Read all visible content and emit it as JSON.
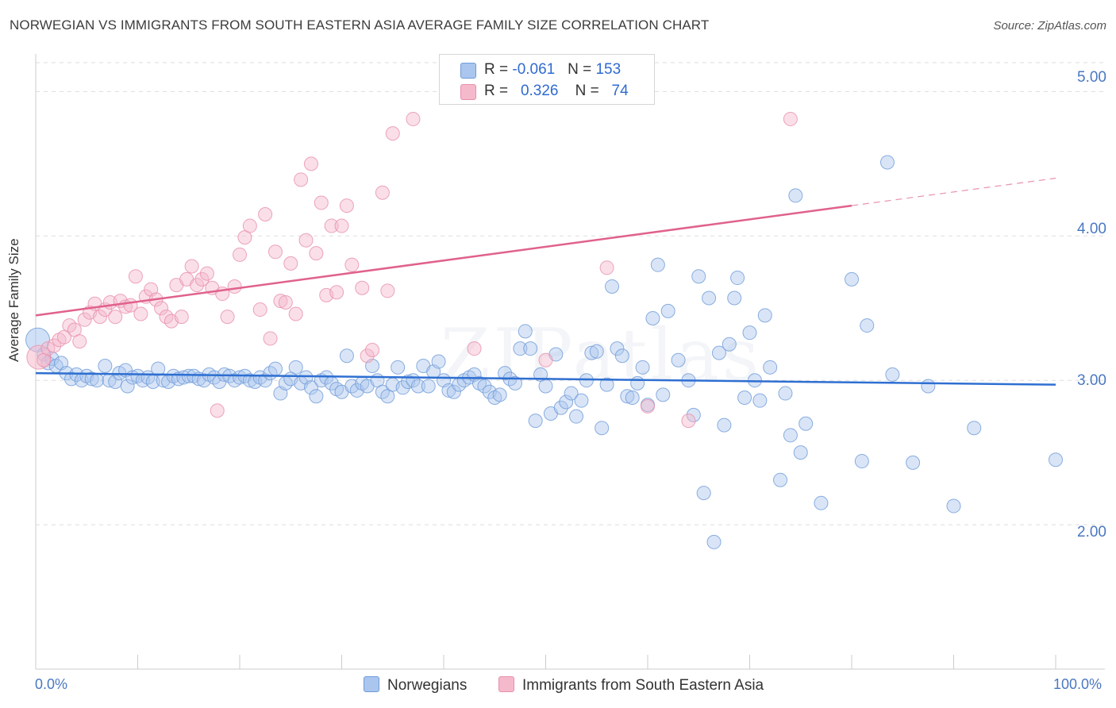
{
  "title": "NORWEGIAN VS IMMIGRANTS FROM SOUTH EASTERN ASIA AVERAGE FAMILY SIZE CORRELATION CHART",
  "source": "Source: ZipAtlas.com",
  "watermark": "ZIPatlas",
  "legend_top": {
    "rows": [
      {
        "r_label": "R = ",
        "r_value": "-0.061",
        "n_label": "N = ",
        "n_value": "153"
      },
      {
        "r_label": "R = ",
        "r_value": "0.326",
        "n_label": "N = ",
        "n_value": "74"
      }
    ]
  },
  "colors": {
    "blue_fill": "#aac6ee",
    "blue_stroke": "#6f9bd8",
    "blue_line": "#2e6fd1",
    "pink_fill": "#f5b9cc",
    "pink_stroke": "#e98fab",
    "pink_line": "#e0628b",
    "grid": "#dddddd",
    "tick_text": "#4a78c2"
  },
  "chart_data": {
    "type": "scatter",
    "xlabel": "",
    "ylabel": "Average Family Size",
    "xlim": [
      0,
      100
    ],
    "ylim": [
      1.0,
      5.2
    ],
    "x_tick_labels": [
      "0.0%",
      "100.0%"
    ],
    "y_ticks": [
      2.0,
      3.0,
      4.0,
      5.0
    ],
    "y_tick_labels": [
      "2.00",
      "3.00",
      "4.00",
      "5.00"
    ],
    "grid": true,
    "legend_position": "bottom",
    "series": [
      {
        "name": "Norwegians",
        "color": "#6f9bd8",
        "trend": {
          "x": [
            0,
            100
          ],
          "y": [
            3.05,
            2.97
          ],
          "dashed_from": null
        },
        "points": [
          [
            0.2,
            3.28
          ],
          [
            0.8,
            3.18
          ],
          [
            1.2,
            3.12
          ],
          [
            1.6,
            3.15
          ],
          [
            2.0,
            3.1
          ],
          [
            2.5,
            3.12
          ],
          [
            3.0,
            3.05
          ],
          [
            3.5,
            3.01
          ],
          [
            4.0,
            3.04
          ],
          [
            4.5,
            3.0
          ],
          [
            5.0,
            3.03
          ],
          [
            5.5,
            3.01
          ],
          [
            6.0,
            3.0
          ],
          [
            6.8,
            3.1
          ],
          [
            7.2,
            3.0
          ],
          [
            7.8,
            2.99
          ],
          [
            8.2,
            3.05
          ],
          [
            8.8,
            3.07
          ],
          [
            9.0,
            2.96
          ],
          [
            9.5,
            3.02
          ],
          [
            10.0,
            3.03
          ],
          [
            10.5,
            3.0
          ],
          [
            11.0,
            3.02
          ],
          [
            11.5,
            2.99
          ],
          [
            12.0,
            3.08
          ],
          [
            12.5,
            3.0
          ],
          [
            13.0,
            2.99
          ],
          [
            13.5,
            3.03
          ],
          [
            14.0,
            3.01
          ],
          [
            14.5,
            3.02
          ],
          [
            15.0,
            3.03
          ],
          [
            15.5,
            3.03
          ],
          [
            16.0,
            3.01
          ],
          [
            16.5,
            3.0
          ],
          [
            17.0,
            3.04
          ],
          [
            17.5,
            3.02
          ],
          [
            18.0,
            2.99
          ],
          [
            18.5,
            3.04
          ],
          [
            19.0,
            3.03
          ],
          [
            19.5,
            3.0
          ],
          [
            20.0,
            3.02
          ],
          [
            20.5,
            3.03
          ],
          [
            21.0,
            3.0
          ],
          [
            21.5,
            2.99
          ],
          [
            22.0,
            3.02
          ],
          [
            22.5,
            3.0
          ],
          [
            23.0,
            3.05
          ],
          [
            23.5,
            3.08
          ],
          [
            24.0,
            2.91
          ],
          [
            24.5,
            2.98
          ],
          [
            25.0,
            3.01
          ],
          [
            25.5,
            3.09
          ],
          [
            26.0,
            2.98
          ],
          [
            26.5,
            3.02
          ],
          [
            27.0,
            2.95
          ],
          [
            27.5,
            2.89
          ],
          [
            28.0,
            3.0
          ],
          [
            28.5,
            3.02
          ],
          [
            29.0,
            2.98
          ],
          [
            29.5,
            2.94
          ],
          [
            30.0,
            2.92
          ],
          [
            30.5,
            3.17
          ],
          [
            31.0,
            2.96
          ],
          [
            31.5,
            2.93
          ],
          [
            32.0,
            2.98
          ],
          [
            32.5,
            2.96
          ],
          [
            33.0,
            3.1
          ],
          [
            33.5,
            3.0
          ],
          [
            34.0,
            2.92
          ],
          [
            34.5,
            2.89
          ],
          [
            35.0,
            2.97
          ],
          [
            35.5,
            3.09
          ],
          [
            36.0,
            2.95
          ],
          [
            36.5,
            2.99
          ],
          [
            37.0,
            3.0
          ],
          [
            37.5,
            2.96
          ],
          [
            38.0,
            3.1
          ],
          [
            38.5,
            2.96
          ],
          [
            39.0,
            3.06
          ],
          [
            39.5,
            3.13
          ],
          [
            40.0,
            3.0
          ],
          [
            40.5,
            2.93
          ],
          [
            41.0,
            2.92
          ],
          [
            41.5,
            2.97
          ],
          [
            42.0,
            3.0
          ],
          [
            42.5,
            3.02
          ],
          [
            43.0,
            3.04
          ],
          [
            43.5,
            2.98
          ],
          [
            44.0,
            2.96
          ],
          [
            44.5,
            2.92
          ],
          [
            45.0,
            2.88
          ],
          [
            45.5,
            2.9
          ],
          [
            46.0,
            3.05
          ],
          [
            46.5,
            3.01
          ],
          [
            47.0,
            2.98
          ],
          [
            47.5,
            3.22
          ],
          [
            48.0,
            3.34
          ],
          [
            48.5,
            3.22
          ],
          [
            49.0,
            2.72
          ],
          [
            49.5,
            3.04
          ],
          [
            50.0,
            2.96
          ],
          [
            50.5,
            2.77
          ],
          [
            51.0,
            3.18
          ],
          [
            51.5,
            2.81
          ],
          [
            52.0,
            2.85
          ],
          [
            52.5,
            2.91
          ],
          [
            53.0,
            2.75
          ],
          [
            53.5,
            2.86
          ],
          [
            54.0,
            3.0
          ],
          [
            54.5,
            3.19
          ],
          [
            55.0,
            3.2
          ],
          [
            55.5,
            2.67
          ],
          [
            56.0,
            2.97
          ],
          [
            56.5,
            3.65
          ],
          [
            57.0,
            3.22
          ],
          [
            57.5,
            3.17
          ],
          [
            58.0,
            2.89
          ],
          [
            58.5,
            2.88
          ],
          [
            59.0,
            2.98
          ],
          [
            59.5,
            3.09
          ],
          [
            60.0,
            2.83
          ],
          [
            60.5,
            3.43
          ],
          [
            61.0,
            3.8
          ],
          [
            61.5,
            2.9
          ],
          [
            62.0,
            3.48
          ],
          [
            63.0,
            3.14
          ],
          [
            64.0,
            3.0
          ],
          [
            64.5,
            2.76
          ],
          [
            65.0,
            3.72
          ],
          [
            65.5,
            2.22
          ],
          [
            66.0,
            3.57
          ],
          [
            66.5,
            1.88
          ],
          [
            67.0,
            3.19
          ],
          [
            67.5,
            2.69
          ],
          [
            68.0,
            3.25
          ],
          [
            68.5,
            3.57
          ],
          [
            68.8,
            3.71
          ],
          [
            69.5,
            2.88
          ],
          [
            70.0,
            3.33
          ],
          [
            70.5,
            3.0
          ],
          [
            71.0,
            2.86
          ],
          [
            71.5,
            3.45
          ],
          [
            72.0,
            3.09
          ],
          [
            73.0,
            2.31
          ],
          [
            73.5,
            2.91
          ],
          [
            74.0,
            2.62
          ],
          [
            74.5,
            4.28
          ],
          [
            75.0,
            2.5
          ],
          [
            75.5,
            2.7
          ],
          [
            77.0,
            2.15
          ],
          [
            80.0,
            3.7
          ],
          [
            81.0,
            2.44
          ],
          [
            81.5,
            3.38
          ],
          [
            83.5,
            4.51
          ],
          [
            84.0,
            3.04
          ],
          [
            86.0,
            2.43
          ],
          [
            87.5,
            2.96
          ],
          [
            90.0,
            2.13
          ],
          [
            92.0,
            2.67
          ],
          [
            100.0,
            2.45
          ]
        ]
      },
      {
        "name": "Immigrants from South Eastern Asia",
        "color": "#e98fab",
        "trend": {
          "x": [
            0,
            100
          ],
          "y": [
            3.45,
            4.4
          ],
          "dashed_from": 80
        },
        "points": [
          [
            0.3,
            3.16
          ],
          [
            0.8,
            3.14
          ],
          [
            1.2,
            3.22
          ],
          [
            1.8,
            3.24
          ],
          [
            2.3,
            3.28
          ],
          [
            2.8,
            3.3
          ],
          [
            3.3,
            3.38
          ],
          [
            3.8,
            3.35
          ],
          [
            4.3,
            3.27
          ],
          [
            4.8,
            3.42
          ],
          [
            5.3,
            3.47
          ],
          [
            5.8,
            3.53
          ],
          [
            6.3,
            3.44
          ],
          [
            6.8,
            3.49
          ],
          [
            7.3,
            3.54
          ],
          [
            7.8,
            3.44
          ],
          [
            8.3,
            3.55
          ],
          [
            8.8,
            3.51
          ],
          [
            9.3,
            3.52
          ],
          [
            9.8,
            3.72
          ],
          [
            10.3,
            3.46
          ],
          [
            10.8,
            3.58
          ],
          [
            11.3,
            3.63
          ],
          [
            11.8,
            3.56
          ],
          [
            12.3,
            3.5
          ],
          [
            12.8,
            3.44
          ],
          [
            13.3,
            3.41
          ],
          [
            13.8,
            3.66
          ],
          [
            14.3,
            3.44
          ],
          [
            14.8,
            3.7
          ],
          [
            15.3,
            3.79
          ],
          [
            15.8,
            3.66
          ],
          [
            16.3,
            3.7
          ],
          [
            16.8,
            3.74
          ],
          [
            17.3,
            3.64
          ],
          [
            17.8,
            2.79
          ],
          [
            18.3,
            3.6
          ],
          [
            18.8,
            3.44
          ],
          [
            19.5,
            3.65
          ],
          [
            20.0,
            3.87
          ],
          [
            20.5,
            3.99
          ],
          [
            21.0,
            4.07
          ],
          [
            22.0,
            3.49
          ],
          [
            22.5,
            4.15
          ],
          [
            23.0,
            3.29
          ],
          [
            23.5,
            3.89
          ],
          [
            24.0,
            3.55
          ],
          [
            24.5,
            3.54
          ],
          [
            25.0,
            3.81
          ],
          [
            25.5,
            3.46
          ],
          [
            26.0,
            4.39
          ],
          [
            26.5,
            3.97
          ],
          [
            27.0,
            4.5
          ],
          [
            27.5,
            3.88
          ],
          [
            28.0,
            4.23
          ],
          [
            28.5,
            3.59
          ],
          [
            29.0,
            4.07
          ],
          [
            29.5,
            3.61
          ],
          [
            30.0,
            4.07
          ],
          [
            30.5,
            4.21
          ],
          [
            31.0,
            3.8
          ],
          [
            32.0,
            3.64
          ],
          [
            32.5,
            3.17
          ],
          [
            33.0,
            3.21
          ],
          [
            34.0,
            4.3
          ],
          [
            34.5,
            3.62
          ],
          [
            35.0,
            4.71
          ],
          [
            37.0,
            4.81
          ],
          [
            43.0,
            3.22
          ],
          [
            50.0,
            3.14
          ],
          [
            56.0,
            3.78
          ],
          [
            60.0,
            2.82
          ],
          [
            64.0,
            2.72
          ],
          [
            74.0,
            4.81
          ]
        ]
      }
    ]
  },
  "bottom_legend": [
    {
      "label": "Norwegians"
    },
    {
      "label": "Immigrants from South Eastern Asia"
    }
  ]
}
